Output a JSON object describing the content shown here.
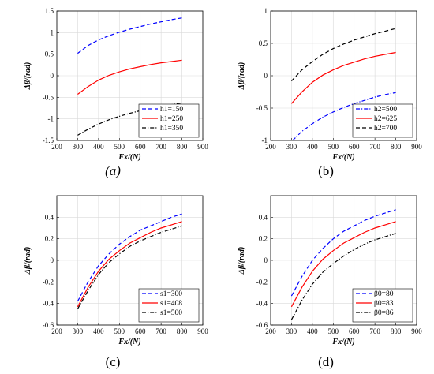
{
  "chart_data": [
    {
      "type": "line",
      "panel_label": "(a)",
      "xlabel": "Fx/(N)",
      "ylabel": "Δβ/(rad)",
      "xlim": [
        200,
        900
      ],
      "ylim": [
        -1.5,
        1.5
      ],
      "xticks": [
        "200",
        "300",
        "400",
        "500",
        "600",
        "700",
        "800",
        "900"
      ],
      "yticks": [
        "-1.5",
        "-1",
        "-0.5",
        "0",
        "0.5",
        "1",
        "1.5"
      ],
      "grid": true,
      "legend_position": "bottom-right",
      "series": [
        {
          "name": "h1=150",
          "color": "#0000ff",
          "dash": "dashed",
          "x": [
            300,
            350,
            400,
            450,
            500,
            550,
            600,
            650,
            700,
            750,
            800
          ],
          "y": [
            0.52,
            0.7,
            0.83,
            0.93,
            1.01,
            1.08,
            1.14,
            1.2,
            1.25,
            1.3,
            1.34
          ]
        },
        {
          "name": "h1=250",
          "color": "#ff0000",
          "dash": "solid",
          "x": [
            300,
            350,
            400,
            450,
            500,
            550,
            600,
            650,
            700,
            750,
            800
          ],
          "y": [
            -0.43,
            -0.25,
            -0.1,
            0.01,
            0.09,
            0.16,
            0.21,
            0.26,
            0.3,
            0.33,
            0.36
          ]
        },
        {
          "name": "h1=350",
          "color": "#000000",
          "dash": "dashdot",
          "x": [
            300,
            350,
            400,
            450,
            500,
            550,
            600,
            650,
            700,
            750,
            800
          ],
          "y": [
            -1.38,
            -1.24,
            -1.12,
            -1.02,
            -0.94,
            -0.87,
            -0.81,
            -0.76,
            -0.71,
            -0.67,
            -0.63
          ]
        }
      ]
    },
    {
      "type": "line",
      "panel_label": "(b)",
      "xlabel": "Fx/(N)",
      "ylabel": "Δβ/(rad)",
      "xlim": [
        200,
        900
      ],
      "ylim": [
        -1,
        1
      ],
      "xticks": [
        "200",
        "300",
        "400",
        "500",
        "600",
        "700",
        "800",
        "900"
      ],
      "yticks": [
        "-1",
        "-0.5",
        "0",
        "0.5",
        "1"
      ],
      "grid": true,
      "legend_position": "bottom-right",
      "series": [
        {
          "name": "h2=500",
          "color": "#0000ff",
          "dash": "dashdot",
          "x": [
            305,
            350,
            400,
            450,
            500,
            550,
            600,
            650,
            700,
            750,
            800
          ],
          "y": [
            -1.0,
            -0.86,
            -0.74,
            -0.64,
            -0.56,
            -0.49,
            -0.43,
            -0.38,
            -0.33,
            -0.29,
            -0.26
          ]
        },
        {
          "name": "h2=625",
          "color": "#ff0000",
          "dash": "solid",
          "x": [
            300,
            350,
            400,
            450,
            500,
            550,
            600,
            650,
            700,
            750,
            800
          ],
          "y": [
            -0.43,
            -0.25,
            -0.1,
            0.01,
            0.09,
            0.16,
            0.21,
            0.26,
            0.3,
            0.33,
            0.36
          ]
        },
        {
          "name": "h2=700",
          "color": "#000000",
          "dash": "dashed",
          "x": [
            300,
            350,
            400,
            450,
            500,
            550,
            600,
            650,
            700,
            750,
            800
          ],
          "y": [
            -0.08,
            0.09,
            0.22,
            0.33,
            0.42,
            0.49,
            0.55,
            0.6,
            0.65,
            0.69,
            0.73
          ]
        }
      ]
    },
    {
      "type": "line",
      "panel_label": "(c)",
      "xlabel": "Fx/(N)",
      "ylabel": "Δβ/(rad)",
      "xlim": [
        200,
        900
      ],
      "ylim": [
        -0.6,
        0.6
      ],
      "xticks": [
        "200",
        "300",
        "400",
        "500",
        "600",
        "700",
        "800",
        "900"
      ],
      "yticks": [
        "-0.6",
        "-0.4",
        "-0.2",
        "0",
        "0.2",
        "0.4"
      ],
      "grid": true,
      "legend_position": "bottom-right",
      "series": [
        {
          "name": "s1=300",
          "color": "#0000ff",
          "dash": "dashed",
          "x": [
            300,
            350,
            400,
            450,
            500,
            550,
            600,
            650,
            700,
            750,
            800
          ],
          "y": [
            -0.38,
            -0.2,
            -0.05,
            0.06,
            0.15,
            0.22,
            0.28,
            0.32,
            0.36,
            0.4,
            0.43
          ]
        },
        {
          "name": "s1=408",
          "color": "#ff0000",
          "dash": "solid",
          "x": [
            300,
            350,
            400,
            450,
            500,
            550,
            600,
            650,
            700,
            750,
            800
          ],
          "y": [
            -0.43,
            -0.25,
            -0.1,
            0.01,
            0.09,
            0.16,
            0.21,
            0.26,
            0.3,
            0.33,
            0.36
          ]
        },
        {
          "name": "s1=500",
          "color": "#000000",
          "dash": "dashdot",
          "x": [
            300,
            350,
            400,
            450,
            500,
            550,
            600,
            650,
            700,
            750,
            800
          ],
          "y": [
            -0.45,
            -0.28,
            -0.13,
            -0.02,
            0.06,
            0.13,
            0.18,
            0.22,
            0.26,
            0.29,
            0.32
          ]
        }
      ]
    },
    {
      "type": "line",
      "panel_label": "(d)",
      "xlabel": "Fx/(N)",
      "ylabel": "Δβ/(rad)",
      "xlim": [
        200,
        900
      ],
      "ylim": [
        -0.6,
        0.6
      ],
      "xticks": [
        "200",
        "300",
        "400",
        "500",
        "600",
        "700",
        "800",
        "900"
      ],
      "yticks": [
        "-0.6",
        "-0.4",
        "-0.2",
        "0",
        "0.2",
        "0.4"
      ],
      "grid": true,
      "legend_position": "bottom-right",
      "series": [
        {
          "name": "β0=80",
          "color": "#0000ff",
          "dash": "dashed",
          "x": [
            300,
            350,
            400,
            450,
            500,
            550,
            600,
            650,
            700,
            750,
            800
          ],
          "y": [
            -0.33,
            -0.15,
            0.0,
            0.11,
            0.2,
            0.27,
            0.32,
            0.37,
            0.41,
            0.44,
            0.47
          ]
        },
        {
          "name": "β0=83",
          "color": "#ff0000",
          "dash": "solid",
          "x": [
            300,
            350,
            400,
            450,
            500,
            550,
            600,
            650,
            700,
            750,
            800
          ],
          "y": [
            -0.43,
            -0.25,
            -0.1,
            0.01,
            0.09,
            0.16,
            0.21,
            0.26,
            0.3,
            0.33,
            0.36
          ]
        },
        {
          "name": "β0=86",
          "color": "#000000",
          "dash": "dashdot",
          "x": [
            300,
            350,
            400,
            450,
            500,
            550,
            600,
            650,
            700,
            750,
            800
          ],
          "y": [
            -0.55,
            -0.37,
            -0.22,
            -0.11,
            -0.03,
            0.04,
            0.1,
            0.15,
            0.19,
            0.22,
            0.25
          ]
        }
      ]
    }
  ]
}
